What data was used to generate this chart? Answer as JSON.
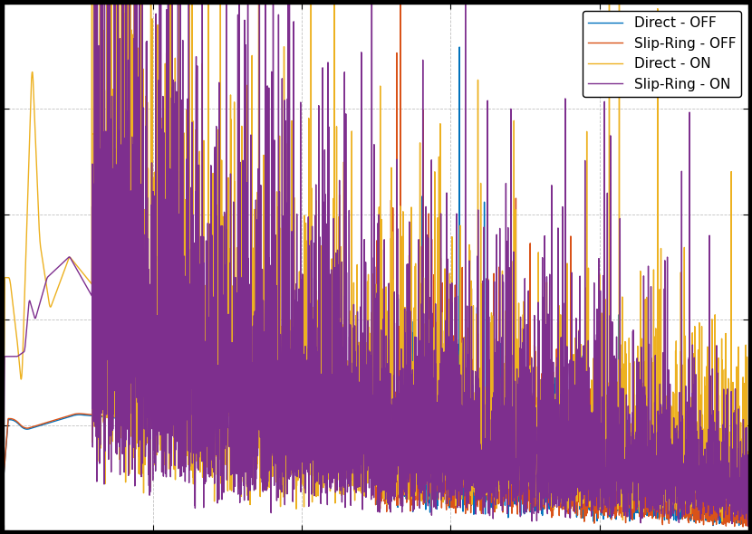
{
  "labels": [
    "Direct - OFF",
    "Slip-Ring - OFF",
    "Direct - ON",
    "Slip-Ring - ON"
  ],
  "colors": {
    "direct_off": "#0072BD",
    "slipring_off": "#D95319",
    "direct_on": "#EDB120",
    "slipring_on": "#7E2F8E"
  },
  "background": "#ffffff",
  "fig_background": "#000000",
  "grid_color": "#c0c0c0",
  "grid_linestyle": "--",
  "figsize": [
    8.3,
    5.9
  ],
  "dpi": 100,
  "legend_loc": "upper right",
  "legend_fontsize": 11,
  "linewidth": 1.0
}
